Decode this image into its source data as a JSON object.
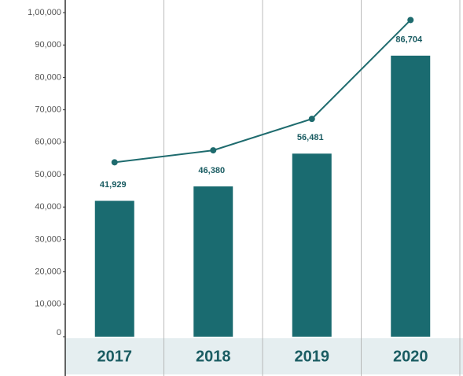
{
  "chart_data": {
    "type": "bar-line",
    "categories": [
      "2017",
      "2018",
      "2019",
      "2020"
    ],
    "series": [
      {
        "type": "bar",
        "color": "#1a6b70",
        "values": [
          41929,
          46380,
          56481,
          86704
        ],
        "value_labels": [
          "41,929",
          "46,380",
          "56,481",
          "86,704"
        ]
      },
      {
        "type": "line",
        "color": "#1e6b6e",
        "values": [
          53800,
          57500,
          67200,
          97700
        ]
      }
    ],
    "ylim": [
      0,
      100000
    ],
    "yticks": [
      0,
      {
        "value": 10000,
        "label": "10,000"
      },
      {
        "value": 20000,
        "label": "20,000"
      },
      {
        "value": 30000,
        "label": "30,000"
      },
      {
        "value": 40000,
        "label": "40,000"
      },
      {
        "value": 50000,
        "label": "50,000"
      },
      {
        "value": 60000,
        "label": "60,000"
      },
      {
        "value": 70000,
        "label": "70,000"
      },
      {
        "value": 80000,
        "label": "80,000"
      },
      {
        "value": 90000,
        "label": "90,000"
      },
      {
        "value": 100000,
        "label": "1,00,000"
      }
    ]
  }
}
